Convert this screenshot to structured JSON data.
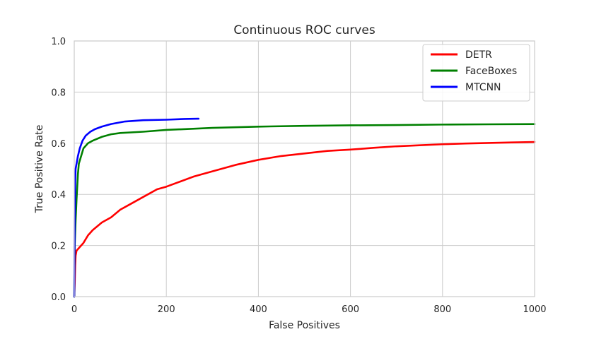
{
  "chart_data": {
    "type": "line",
    "title": "Continuous ROC curves",
    "xlabel": "False Positives",
    "ylabel": "True Positive Rate",
    "xlim": [
      0,
      1000
    ],
    "ylim": [
      0,
      1.0
    ],
    "xticks": [
      0,
      200,
      400,
      600,
      800,
      1000
    ],
    "xtick_labels": [
      "0",
      "200",
      "400",
      "600",
      "800",
      "1000"
    ],
    "yticks": [
      0.0,
      0.2,
      0.4,
      0.6,
      0.8,
      1.0
    ],
    "ytick_labels": [
      "0.0",
      "0.2",
      "0.4",
      "0.6",
      "0.8",
      "1.0"
    ],
    "grid": true,
    "legend_position": "top-right",
    "series": [
      {
        "name": "DETR",
        "color": "#ff0000",
        "points": [
          [
            0,
            0.0
          ],
          [
            1,
            0.05
          ],
          [
            2,
            0.12
          ],
          [
            3,
            0.16
          ],
          [
            5,
            0.18
          ],
          [
            10,
            0.19
          ],
          [
            20,
            0.21
          ],
          [
            30,
            0.24
          ],
          [
            40,
            0.26
          ],
          [
            60,
            0.29
          ],
          [
            80,
            0.31
          ],
          [
            100,
            0.34
          ],
          [
            120,
            0.36
          ],
          [
            150,
            0.39
          ],
          [
            180,
            0.42
          ],
          [
            200,
            0.43
          ],
          [
            230,
            0.45
          ],
          [
            260,
            0.47
          ],
          [
            300,
            0.49
          ],
          [
            350,
            0.515
          ],
          [
            400,
            0.535
          ],
          [
            450,
            0.55
          ],
          [
            500,
            0.56
          ],
          [
            550,
            0.57
          ],
          [
            600,
            0.575
          ],
          [
            650,
            0.582
          ],
          [
            700,
            0.588
          ],
          [
            750,
            0.592
          ],
          [
            800,
            0.596
          ],
          [
            850,
            0.599
          ],
          [
            900,
            0.601
          ],
          [
            950,
            0.603
          ],
          [
            1000,
            0.605
          ]
        ]
      },
      {
        "name": "FaceBoxes",
        "color": "#008000",
        "points": [
          [
            0,
            0.0
          ],
          [
            1,
            0.2
          ],
          [
            3,
            0.3
          ],
          [
            5,
            0.38
          ],
          [
            8,
            0.48
          ],
          [
            10,
            0.52
          ],
          [
            15,
            0.55
          ],
          [
            20,
            0.58
          ],
          [
            30,
            0.6
          ],
          [
            40,
            0.61
          ],
          [
            60,
            0.625
          ],
          [
            80,
            0.635
          ],
          [
            100,
            0.64
          ],
          [
            150,
            0.645
          ],
          [
            200,
            0.652
          ],
          [
            300,
            0.66
          ],
          [
            400,
            0.665
          ],
          [
            500,
            0.668
          ],
          [
            600,
            0.67
          ],
          [
            700,
            0.671
          ],
          [
            800,
            0.673
          ],
          [
            900,
            0.674
          ],
          [
            1000,
            0.675
          ]
        ]
      },
      {
        "name": "MTCNN",
        "color": "#0000ff",
        "points": [
          [
            0,
            0.0
          ],
          [
            1,
            0.3
          ],
          [
            2,
            0.45
          ],
          [
            3,
            0.5
          ],
          [
            5,
            0.52
          ],
          [
            8,
            0.55
          ],
          [
            12,
            0.58
          ],
          [
            18,
            0.61
          ],
          [
            25,
            0.63
          ],
          [
            35,
            0.645
          ],
          [
            45,
            0.655
          ],
          [
            60,
            0.665
          ],
          [
            80,
            0.675
          ],
          [
            110,
            0.685
          ],
          [
            150,
            0.69
          ],
          [
            200,
            0.692
          ],
          [
            240,
            0.695
          ],
          [
            270,
            0.696
          ]
        ]
      }
    ]
  }
}
